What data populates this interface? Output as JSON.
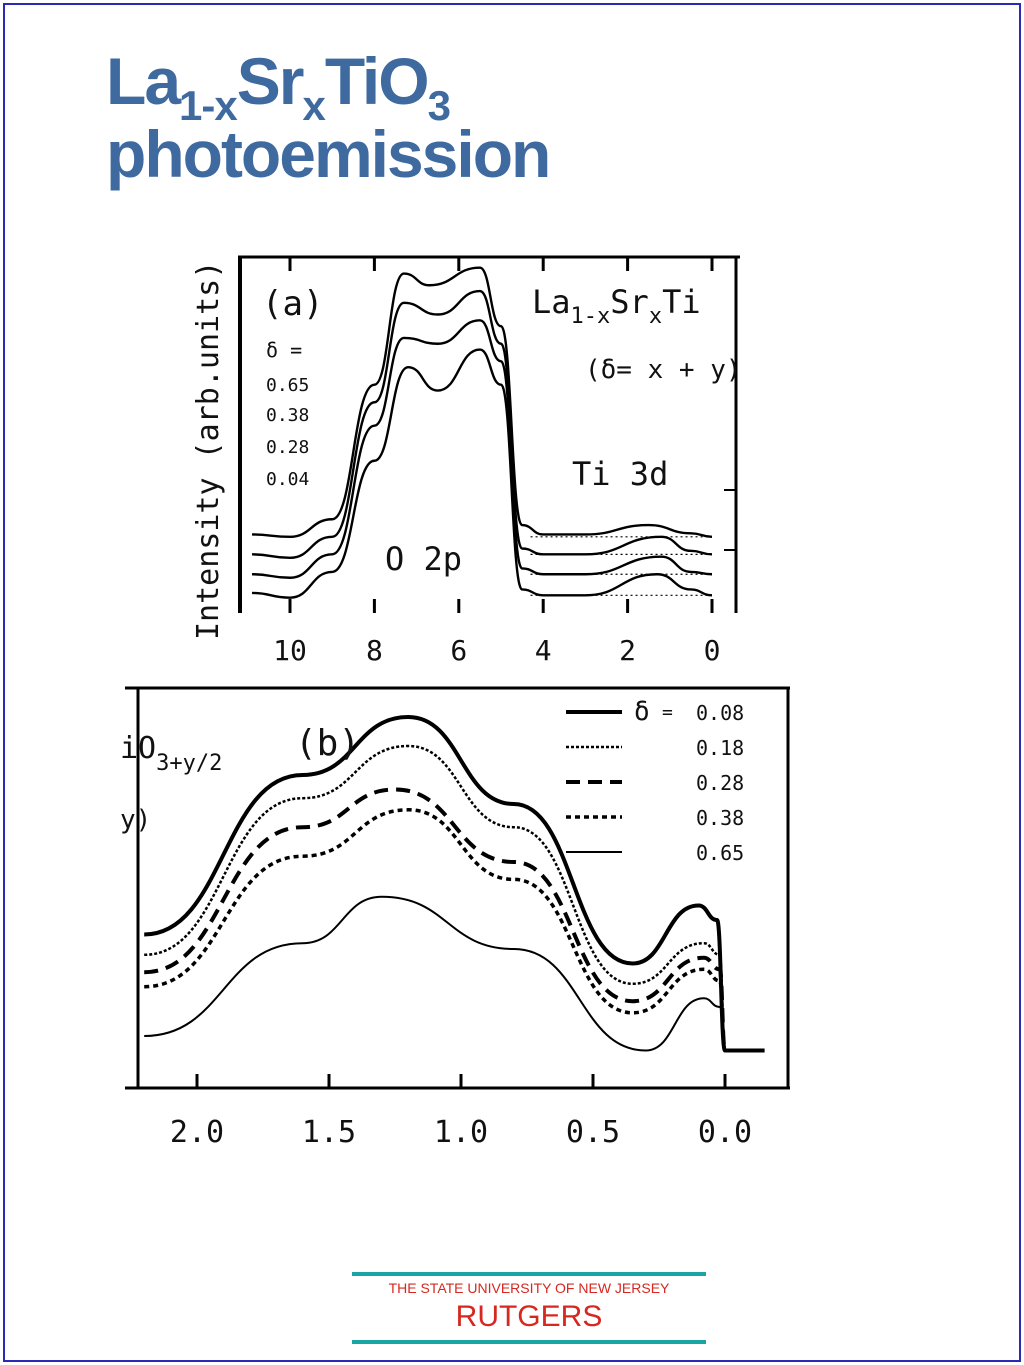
{
  "slide": {
    "title_main": "La",
    "title_sub1": "1-x",
    "title_mid": "Sr",
    "title_sub2": "x",
    "title_end": "TiO",
    "title_sub3": "3",
    "title_line2": "photoemission",
    "logo_top": "THE STATE UNIVERSITY OF NEW JERSEY",
    "logo_main": "RUTGERS",
    "accent_color": "#3f6aa0",
    "logo_color": "#d6281f",
    "rule_color": "#1aa5a5"
  },
  "chart_data": [
    {
      "type": "line",
      "panel_label": "(a)",
      "ylabel": "Intensity (arb.units)",
      "annotation_formula_base": "La",
      "annotation_formula_sub1": "1-x",
      "annotation_formula_mid": "Sr",
      "annotation_formula_sub2": "x",
      "annotation_formula_end": "Ti",
      "annotation_delta": "(δ= x + y)",
      "peak_label_o2p": "O 2p",
      "peak_label_ti3d": "Ti 3d",
      "legend_title": "δ =",
      "legend_values": [
        "0.65",
        "0.38",
        "0.28",
        "0.04"
      ],
      "x_ticks": [
        "10",
        "8",
        "6",
        "4",
        "2",
        "0"
      ],
      "xlim": [
        10.9,
        -0.5
      ],
      "series": [
        {
          "values": [
            [
              10.9,
              0.62
            ],
            [
              10,
              0.6
            ],
            [
              9,
              0.75
            ],
            [
              8,
              1.9
            ],
            [
              7.3,
              2.85
            ],
            [
              6.7,
              2.75
            ],
            [
              5.5,
              2.9
            ],
            [
              5,
              2.4
            ],
            [
              4.5,
              0.7
            ],
            [
              4,
              0.62
            ],
            [
              3,
              0.62
            ],
            [
              1.5,
              0.7
            ],
            [
              0.5,
              0.63
            ],
            [
              0,
              0.6
            ]
          ]
        },
        {
          "values": [
            [
              10.9,
              0.45
            ],
            [
              10,
              0.42
            ],
            [
              9,
              0.6
            ],
            [
              8,
              1.75
            ],
            [
              7.3,
              2.6
            ],
            [
              6.5,
              2.5
            ],
            [
              5.5,
              2.7
            ],
            [
              5,
              2.25
            ],
            [
              4.5,
              0.5
            ],
            [
              4,
              0.45
            ],
            [
              3,
              0.45
            ],
            [
              1.2,
              0.6
            ],
            [
              0.5,
              0.48
            ],
            [
              0,
              0.45
            ]
          ]
        },
        {
          "values": [
            [
              10.9,
              0.28
            ],
            [
              10,
              0.25
            ],
            [
              9,
              0.45
            ],
            [
              8,
              1.55
            ],
            [
              7.3,
              2.3
            ],
            [
              6.5,
              2.25
            ],
            [
              5.5,
              2.45
            ],
            [
              5,
              2.1
            ],
            [
              4.5,
              0.33
            ],
            [
              4,
              0.28
            ],
            [
              3,
              0.28
            ],
            [
              1.2,
              0.43
            ],
            [
              0.5,
              0.3
            ],
            [
              0,
              0.28
            ]
          ]
        },
        {
          "values": [
            [
              10.9,
              0.12
            ],
            [
              10,
              0.08
            ],
            [
              9,
              0.3
            ],
            [
              8,
              1.25
            ],
            [
              7.2,
              2.05
            ],
            [
              6.5,
              1.85
            ],
            [
              5.5,
              2.2
            ],
            [
              5,
              1.9
            ],
            [
              4.5,
              0.15
            ],
            [
              4,
              0.1
            ],
            [
              3,
              0.1
            ],
            [
              1.3,
              0.28
            ],
            [
              0.5,
              0.15
            ],
            [
              0,
              0.1
            ]
          ]
        }
      ]
    },
    {
      "type": "line",
      "panel_label": "(b)",
      "annotation_formula": "iO",
      "annotation_sub": "3+y/2",
      "annotation_cut": "y)",
      "legend_delta": "δ",
      "legend_eq": "=",
      "legend_values": [
        "0.08",
        "0.18",
        "0.28",
        "0.38",
        "0.65"
      ],
      "x_ticks": [
        "2.0",
        "1.5",
        "1.0",
        "0.5",
        "0.0"
      ],
      "xlim": [
        2.2,
        -0.2
      ],
      "series": [
        {
          "values": [
            [
              2.2,
              0.45
            ],
            [
              1.6,
              1.0
            ],
            [
              1.2,
              1.2
            ],
            [
              0.8,
              0.9
            ],
            [
              0.35,
              0.35
            ],
            [
              0.1,
              0.55
            ],
            [
              0.03,
              0.5
            ],
            [
              0.0,
              0.05
            ],
            [
              -0.15,
              0.05
            ]
          ]
        },
        {
          "values": [
            [
              2.2,
              0.38
            ],
            [
              1.6,
              0.92
            ],
            [
              1.2,
              1.1
            ],
            [
              0.8,
              0.82
            ],
            [
              0.35,
              0.28
            ],
            [
              0.08,
              0.42
            ],
            [
              0.02,
              0.38
            ],
            [
              0.0,
              0.05
            ]
          ]
        },
        {
          "values": [
            [
              2.2,
              0.32
            ],
            [
              1.6,
              0.82
            ],
            [
              1.25,
              0.95
            ],
            [
              0.8,
              0.7
            ],
            [
              0.35,
              0.22
            ],
            [
              0.08,
              0.37
            ],
            [
              0.02,
              0.33
            ],
            [
              0.0,
              0.05
            ]
          ]
        },
        {
          "values": [
            [
              2.2,
              0.27
            ],
            [
              1.6,
              0.72
            ],
            [
              1.2,
              0.88
            ],
            [
              0.8,
              0.64
            ],
            [
              0.35,
              0.18
            ],
            [
              0.08,
              0.33
            ],
            [
              0.02,
              0.29
            ],
            [
              0.0,
              0.05
            ]
          ]
        },
        {
          "values": [
            [
              2.2,
              0.1
            ],
            [
              1.6,
              0.42
            ],
            [
              1.3,
              0.58
            ],
            [
              0.8,
              0.4
            ],
            [
              0.3,
              0.05
            ],
            [
              0.08,
              0.23
            ],
            [
              0.02,
              0.2
            ],
            [
              0.0,
              0.05
            ]
          ]
        }
      ]
    }
  ]
}
